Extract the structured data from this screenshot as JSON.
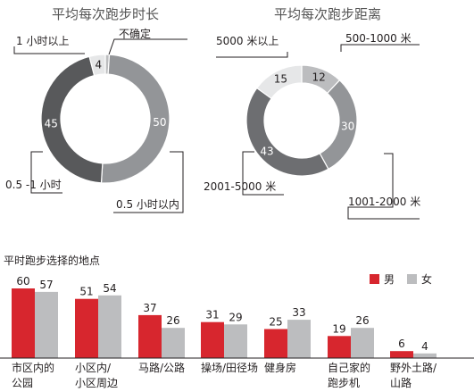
{
  "colors": {
    "red": "#d7262e",
    "light_gray": "#bcbdbf",
    "dark_gray": "#58595b",
    "mid_gray": "#6d6e71",
    "gray": "#939598",
    "pale": "#e6e7e8"
  },
  "chart_data": [
    {
      "type": "pie",
      "title": "平均每次跑步时长",
      "slices": [
        {
          "label": "不确定",
          "value": 1,
          "color": "#bcbdbf"
        },
        {
          "label": "0.5 小时以内",
          "value": 50,
          "color": "#939598"
        },
        {
          "label": "0.5 -1 小时",
          "value": 45,
          "color": "#58595b"
        },
        {
          "label": "1 小时以上",
          "value": 4,
          "color": "#e6e7e8"
        }
      ]
    },
    {
      "type": "pie",
      "title": "平均每次跑步距离",
      "slices": [
        {
          "label": "500-1000 米",
          "value": 12,
          "color": "#bcbdbf"
        },
        {
          "label": "1001-2000 米",
          "value": 30,
          "color": "#939598"
        },
        {
          "label": "2001-5000 米",
          "value": 43,
          "color": "#6d6e71"
        },
        {
          "label": "5000 米以上",
          "value": 15,
          "color": "#e6e7e8"
        }
      ]
    },
    {
      "type": "bar",
      "title": "平时跑步选择的地点",
      "categories": [
        [
          "市区内的",
          "公园"
        ],
        [
          "小区内/",
          "小区周边"
        ],
        [
          "马路/公路"
        ],
        [
          "操场/田径场"
        ],
        [
          "健身房"
        ],
        [
          "自己家的",
          "跑步机"
        ],
        [
          "野外土路/",
          "山路"
        ]
      ],
      "series": [
        {
          "name": "男",
          "values": [
            60,
            51,
            37,
            31,
            25,
            19,
            6
          ],
          "color": "#d7262e"
        },
        {
          "name": "女",
          "values": [
            57,
            54,
            26,
            29,
            33,
            26,
            4
          ],
          "color": "#bcbdbf"
        }
      ],
      "ylim": [
        0,
        60
      ],
      "legend": "top-right"
    }
  ]
}
